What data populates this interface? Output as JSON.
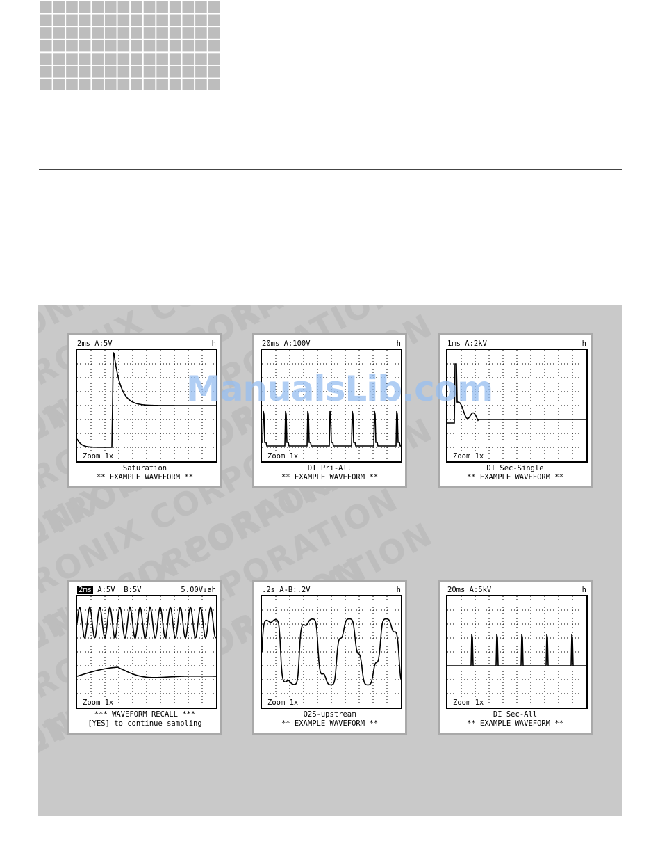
{
  "watermark": {
    "site": "ManualsLib.com",
    "background_text": "VETRONIX CORPORATION"
  },
  "scopes": [
    {
      "header_left": "2ms A:5V",
      "header_right": "h",
      "zoom": "Zoom 1x",
      "caption1": "Saturation",
      "caption2": "** EXAMPLE WAVEFORM **",
      "waveform": "saturation"
    },
    {
      "header_left": "20ms A:100V",
      "header_right": "h",
      "zoom": "Zoom 1x",
      "caption1": "DI Pri-All",
      "caption2": "** EXAMPLE WAVEFORM **",
      "waveform": "pri-all"
    },
    {
      "header_left": "1ms A:2kV",
      "header_right": "h",
      "zoom": "Zoom 1x",
      "caption1": "DI Sec-Single",
      "caption2": "** EXAMPLE WAVEFORM **",
      "waveform": "sec-single"
    },
    {
      "header_highlight": "2ms",
      "header_left": " A:5V  B:5V",
      "header_right": "5.00V↓ah",
      "zoom": "Zoom 1x",
      "caption1": "*** WAVEFORM RECALL ***",
      "caption2": "[YES] to continue sampling",
      "waveform": "recall"
    },
    {
      "header_left": ".2s A-B:.2V",
      "header_right": "h",
      "zoom": "Zoom 1x",
      "caption1": "O2S-upstream",
      "caption2": "** EXAMPLE WAVEFORM **",
      "waveform": "o2s"
    },
    {
      "header_left": "20ms A:5kV",
      "header_right": "h",
      "zoom": "Zoom 1x",
      "caption1": "DI Sec-All",
      "caption2": "** EXAMPLE WAVEFORM **",
      "waveform": "sec-all"
    }
  ]
}
